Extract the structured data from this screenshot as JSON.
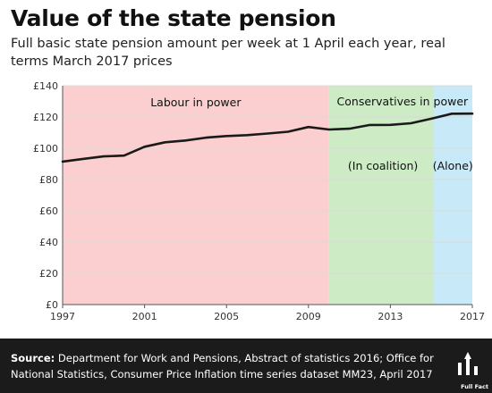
{
  "header": {
    "title": "Value of the state pension",
    "subtitle": "Full basic state pension amount per week at 1 April each year, real terms March 2017 prices"
  },
  "footer": {
    "source_label": "Source:",
    "source_text": "Department for Work and Pensions, Abstract of statistics 2016; Office for National Statistics, Consumer Price Inflation time series dataset MM23, April 2017",
    "logo_text": "Full Fact"
  },
  "colors": {
    "labour": "#fbcfcf",
    "coalition": "#cdecc6",
    "alone": "#c7e9f8",
    "line": "#1a1a1a",
    "grid": "#d9d9d9"
  },
  "chart_data": {
    "type": "line",
    "x": [
      1997,
      1998,
      1999,
      2000,
      2001,
      2002,
      2003,
      2004,
      2005,
      2006,
      2007,
      2008,
      2009,
      2010,
      2011,
      2012,
      2013,
      2014,
      2015,
      2016,
      2017
    ],
    "series": [
      {
        "values": [
          91.5,
          93.2,
          94.8,
          95.3,
          101.0,
          103.8,
          105.0,
          106.8,
          107.8,
          108.4,
          109.4,
          110.6,
          113.6,
          112.0,
          112.5,
          114.9,
          115.0,
          116.0,
          118.9,
          122.1,
          122.2
        ]
      }
    ],
    "xlim": [
      1997,
      2017
    ],
    "ylim": [
      0,
      140
    ],
    "x_ticks": [
      1997,
      2001,
      2005,
      2009,
      2013,
      2017
    ],
    "y_ticks": [
      0,
      20,
      40,
      60,
      80,
      100,
      120,
      140
    ],
    "y_tick_labels": [
      "£0",
      "£20",
      "£40",
      "£60",
      "£80",
      "£100",
      "£120",
      "£140"
    ],
    "grid": true,
    "regions": [
      {
        "label": "Labour in power",
        "from": 1997,
        "to": 2010.0
      },
      {
        "label": "",
        "from": 2010.0,
        "to": 2015.1
      },
      {
        "label": "",
        "from": 2015.1,
        "to": 2017
      }
    ],
    "annotations": [
      {
        "text": "Conservatives in power"
      },
      {
        "text": "(In coalition)"
      },
      {
        "text": "(Alone)"
      }
    ]
  }
}
